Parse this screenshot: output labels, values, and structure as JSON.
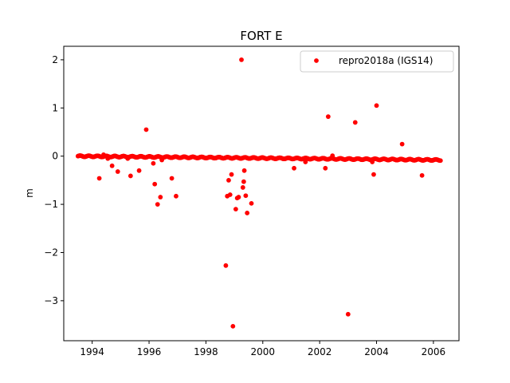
{
  "chart_data": {
    "type": "scatter",
    "title": "FORT E",
    "xlabel": "",
    "ylabel": "m",
    "xlim": [
      1993.0,
      2006.9
    ],
    "ylim": [
      -3.83,
      2.28
    ],
    "xticks": [
      1994,
      1996,
      1998,
      2000,
      2002,
      2004,
      2006
    ],
    "xtick_labels": [
      "1994",
      "1996",
      "1998",
      "2000",
      "2002",
      "2004",
      "2006"
    ],
    "yticks": [
      2,
      1,
      0,
      -1,
      -2,
      -3
    ],
    "ytick_labels": [
      "2",
      "1",
      "0",
      "−1",
      "−2",
      "−3"
    ],
    "grid": false,
    "legend": {
      "position": "top-right",
      "entries": [
        "repro2018a (IGS14)"
      ]
    },
    "series": [
      {
        "name": "repro2018a (IGS14)",
        "color": "#ff0000",
        "main_band": {
          "x_start": 1993.5,
          "x_end": 2006.25,
          "y_start": 0.0,
          "y_end": -0.08
        },
        "outliers": [
          {
            "x": 1994.25,
            "y": -0.46
          },
          {
            "x": 1994.4,
            "y": 0.03
          },
          {
            "x": 1994.55,
            "y": -0.05
          },
          {
            "x": 1994.7,
            "y": -0.2
          },
          {
            "x": 1994.9,
            "y": -0.32
          },
          {
            "x": 1995.25,
            "y": -0.05
          },
          {
            "x": 1995.35,
            "y": -0.41
          },
          {
            "x": 1995.65,
            "y": -0.3
          },
          {
            "x": 1995.9,
            "y": 0.55
          },
          {
            "x": 1996.15,
            "y": -0.15
          },
          {
            "x": 1996.2,
            "y": -0.58
          },
          {
            "x": 1996.3,
            "y": -1.0
          },
          {
            "x": 1996.4,
            "y": -0.85
          },
          {
            "x": 1996.45,
            "y": -0.08
          },
          {
            "x": 1996.8,
            "y": -0.46
          },
          {
            "x": 1996.95,
            "y": -0.83
          },
          {
            "x": 1998.7,
            "y": -2.27
          },
          {
            "x": 1998.75,
            "y": -0.83
          },
          {
            "x": 1998.8,
            "y": -0.5
          },
          {
            "x": 1998.85,
            "y": -0.8
          },
          {
            "x": 1998.9,
            "y": -0.38
          },
          {
            "x": 1998.95,
            "y": -3.53
          },
          {
            "x": 1999.05,
            "y": -1.1
          },
          {
            "x": 1999.1,
            "y": -0.87
          },
          {
            "x": 1999.15,
            "y": -0.85
          },
          {
            "x": 1999.25,
            "y": 2.0
          },
          {
            "x": 1999.3,
            "y": -0.65
          },
          {
            "x": 1999.33,
            "y": -0.53
          },
          {
            "x": 1999.35,
            "y": -0.3
          },
          {
            "x": 1999.4,
            "y": -0.82
          },
          {
            "x": 1999.45,
            "y": -1.18
          },
          {
            "x": 1999.6,
            "y": -0.98
          },
          {
            "x": 2001.1,
            "y": -0.25
          },
          {
            "x": 2001.5,
            "y": -0.12
          },
          {
            "x": 2002.2,
            "y": -0.25
          },
          {
            "x": 2002.3,
            "y": 0.82
          },
          {
            "x": 2002.45,
            "y": 0.01
          },
          {
            "x": 2003.0,
            "y": -3.28
          },
          {
            "x": 2003.25,
            "y": 0.7
          },
          {
            "x": 2003.85,
            "y": -0.12
          },
          {
            "x": 2003.9,
            "y": -0.38
          },
          {
            "x": 2004.0,
            "y": 1.05
          },
          {
            "x": 2004.9,
            "y": 0.25
          },
          {
            "x": 2005.6,
            "y": -0.4
          }
        ]
      }
    ]
  }
}
